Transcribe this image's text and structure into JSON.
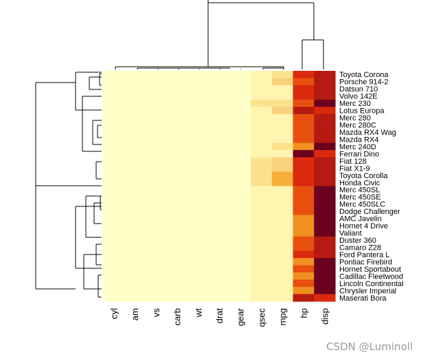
{
  "chart_data": {
    "type": "heatmap",
    "title": "",
    "columns": [
      "cyl",
      "am",
      "vs",
      "carb",
      "wt",
      "drat",
      "gear",
      "qsec",
      "mpg",
      "hp",
      "disp"
    ],
    "rows": [
      "Toyota Corona",
      "Porsche 914-2",
      "Datsun 710",
      "Volvo 142E",
      "Merc 230",
      "Lotus Europa",
      "Merc 280",
      "Merc 280C",
      "Mazda RX4 Wag",
      "Mazda RX4",
      "Merc 240D",
      "Ferrari Dino",
      "Fiat 128",
      "Fiat X1-9",
      "Toyota Corolla",
      "Honda Civic",
      "Merc 450SL",
      "Merc 450SE",
      "Merc 450SLC",
      "Dodge Challenger",
      "AMC Javelin",
      "Hornet 4 Drive",
      "Valiant",
      "Duster 360",
      "Camaro Z28",
      "Ford Pantera L",
      "Pontiac Firebird",
      "Hornet Sportabout",
      "Cadillac Fleetwood",
      "Lincoln Continental",
      "Chrysler Imperial",
      "Maserati Bora"
    ],
    "level_scale": "0 = lightest yellow ... 9 = darkest red",
    "palette": [
      "#FFFFC8",
      "#FFF5B0",
      "#FCE28E",
      "#F8D27C",
      "#F5B03C",
      "#F09020",
      "#E85010",
      "#DA2A0E",
      "#B51B10",
      "#6B0020"
    ],
    "levels": [
      [
        0,
        0,
        0,
        0,
        0,
        0,
        0,
        1,
        2,
        7,
        8
      ],
      [
        0,
        0,
        0,
        0,
        0,
        0,
        0,
        1,
        3,
        6,
        8
      ],
      [
        0,
        0,
        0,
        0,
        0,
        0,
        0,
        1,
        1,
        7,
        8
      ],
      [
        0,
        0,
        0,
        0,
        0,
        0,
        0,
        1,
        1,
        7,
        8
      ],
      [
        0,
        0,
        0,
        0,
        0,
        0,
        0,
        2,
        2,
        6,
        9
      ],
      [
        0,
        0,
        0,
        0,
        0,
        0,
        0,
        1,
        3,
        8,
        7
      ],
      [
        0,
        0,
        0,
        0,
        0,
        0,
        0,
        1,
        1,
        6,
        8
      ],
      [
        0,
        0,
        0,
        0,
        0,
        0,
        0,
        1,
        1,
        6,
        8
      ],
      [
        0,
        0,
        0,
        0,
        0,
        0,
        0,
        1,
        1,
        6,
        8
      ],
      [
        0,
        0,
        0,
        0,
        0,
        0,
        0,
        1,
        1,
        6,
        8
      ],
      [
        0,
        0,
        0,
        0,
        0,
        0,
        0,
        1,
        2,
        5,
        9
      ],
      [
        0,
        0,
        0,
        0,
        0,
        0,
        0,
        1,
        1,
        9,
        7
      ],
      [
        0,
        0,
        0,
        0,
        0,
        0,
        0,
        2,
        3,
        7,
        8
      ],
      [
        0,
        0,
        0,
        0,
        0,
        0,
        0,
        2,
        3,
        7,
        8
      ],
      [
        0,
        0,
        0,
        0,
        0,
        0,
        0,
        2,
        4,
        7,
        8
      ],
      [
        0,
        0,
        0,
        0,
        0,
        0,
        0,
        2,
        4,
        7,
        8
      ],
      [
        0,
        0,
        0,
        0,
        0,
        0,
        0,
        1,
        1,
        6,
        9
      ],
      [
        0,
        0,
        0,
        0,
        0,
        0,
        0,
        1,
        1,
        6,
        9
      ],
      [
        0,
        0,
        0,
        0,
        0,
        0,
        0,
        1,
        1,
        6,
        9
      ],
      [
        0,
        0,
        0,
        0,
        0,
        0,
        0,
        1,
        1,
        6,
        9
      ],
      [
        0,
        0,
        0,
        0,
        0,
        0,
        0,
        1,
        1,
        5,
        9
      ],
      [
        0,
        0,
        0,
        0,
        0,
        0,
        0,
        1,
        1,
        5,
        9
      ],
      [
        0,
        0,
        0,
        0,
        0,
        0,
        0,
        1,
        1,
        5,
        9
      ],
      [
        0,
        0,
        0,
        0,
        0,
        0,
        0,
        1,
        1,
        6,
        8
      ],
      [
        0,
        0,
        0,
        0,
        0,
        0,
        0,
        1,
        1,
        6,
        8
      ],
      [
        0,
        0,
        0,
        0,
        0,
        0,
        0,
        1,
        1,
        7,
        8
      ],
      [
        0,
        0,
        0,
        0,
        0,
        0,
        0,
        1,
        1,
        5,
        9
      ],
      [
        0,
        0,
        0,
        0,
        0,
        0,
        0,
        1,
        1,
        6,
        9
      ],
      [
        0,
        0,
        0,
        0,
        0,
        0,
        0,
        1,
        1,
        5,
        9
      ],
      [
        0,
        0,
        0,
        0,
        0,
        0,
        0,
        1,
        1,
        6,
        9
      ],
      [
        0,
        0,
        0,
        0,
        0,
        0,
        0,
        1,
        1,
        5,
        9
      ],
      [
        0,
        0,
        0,
        0,
        0,
        0,
        0,
        1,
        1,
        8,
        7
      ]
    ]
  },
  "watermark": "CSDN @Luminoll"
}
